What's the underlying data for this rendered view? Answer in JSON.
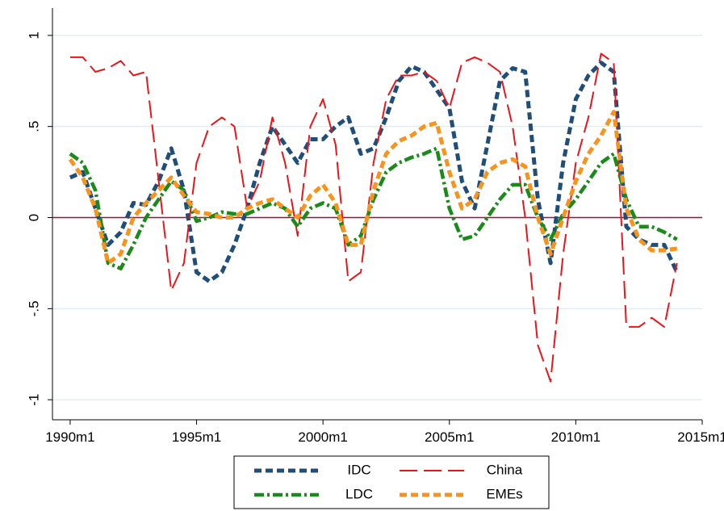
{
  "chart_data": {
    "type": "line",
    "x": [
      1990,
      1990.5,
      1991,
      1991.5,
      1992,
      1992.5,
      1993,
      1993.5,
      1994,
      1994.5,
      1995,
      1995.5,
      1996,
      1996.5,
      1997,
      1997.5,
      1998,
      1998.5,
      1999,
      1999.5,
      2000,
      2000.5,
      2001,
      2001.5,
      2002,
      2002.5,
      2003,
      2003.5,
      2004,
      2004.5,
      2005,
      2005.5,
      2006,
      2006.5,
      2007,
      2007.5,
      2008,
      2008.5,
      2009,
      2009.5,
      2010,
      2010.5,
      2011,
      2011.5,
      2012,
      2012.5,
      2013,
      2013.5,
      2014
    ],
    "series": [
      {
        "name": "IDC",
        "color": "#1f4e79",
        "values": [
          0.22,
          0.25,
          0.05,
          -0.15,
          -0.08,
          0.08,
          0.07,
          0.2,
          0.38,
          0.15,
          -0.3,
          -0.35,
          -0.3,
          -0.15,
          0.05,
          0.3,
          0.5,
          0.4,
          0.3,
          0.43,
          0.43,
          0.5,
          0.55,
          0.35,
          0.38,
          0.55,
          0.75,
          0.83,
          0.8,
          0.7,
          0.6,
          0.2,
          0.05,
          0.4,
          0.75,
          0.82,
          0.8,
          0.1,
          -0.25,
          0.3,
          0.65,
          0.78,
          0.85,
          0.8,
          -0.05,
          -0.12,
          -0.15,
          -0.15,
          -0.3
        ]
      },
      {
        "name": "China",
        "color": "#e8161b",
        "values": [
          0.88,
          0.88,
          0.8,
          0.82,
          0.86,
          0.78,
          0.8,
          0.2,
          -0.4,
          -0.25,
          0.3,
          0.5,
          0.55,
          0.5,
          0.05,
          0.2,
          0.55,
          0.3,
          -0.1,
          0.5,
          0.65,
          0.4,
          -0.35,
          -0.3,
          0.3,
          0.65,
          0.78,
          0.78,
          0.8,
          0.75,
          0.6,
          0.85,
          0.88,
          0.85,
          0.8,
          0.5,
          0.0,
          -0.7,
          -0.9,
          -0.2,
          0.3,
          0.55,
          0.9,
          0.85,
          -0.6,
          -0.6,
          -0.55,
          -0.6,
          -0.25
        ]
      },
      {
        "name": "LDC",
        "color": "#1a8a1a",
        "values": [
          0.35,
          0.3,
          0.15,
          -0.25,
          -0.28,
          -0.15,
          0.0,
          0.1,
          0.2,
          0.15,
          -0.02,
          0.0,
          0.03,
          0.02,
          0.02,
          0.05,
          0.08,
          0.05,
          -0.05,
          0.05,
          0.08,
          0.05,
          -0.15,
          -0.1,
          0.1,
          0.25,
          0.3,
          0.33,
          0.35,
          0.38,
          0.05,
          -0.12,
          -0.1,
          0.0,
          0.1,
          0.18,
          0.18,
          0.0,
          -0.12,
          0.02,
          0.1,
          0.2,
          0.3,
          0.35,
          0.1,
          -0.05,
          -0.05,
          -0.08,
          -0.12
        ]
      },
      {
        "name": "EMEs",
        "color": "#f7941d",
        "values": [
          0.32,
          0.22,
          0.05,
          -0.25,
          -0.2,
          0.0,
          0.08,
          0.15,
          0.22,
          0.12,
          0.03,
          0.02,
          0.0,
          0.0,
          0.05,
          0.08,
          0.1,
          0.05,
          0.0,
          0.12,
          0.18,
          0.08,
          -0.15,
          -0.15,
          0.15,
          0.35,
          0.42,
          0.45,
          0.5,
          0.52,
          0.25,
          0.05,
          0.1,
          0.25,
          0.3,
          0.32,
          0.28,
          0.0,
          -0.2,
          0.0,
          0.2,
          0.35,
          0.45,
          0.58,
          0.05,
          -0.12,
          -0.18,
          -0.18,
          -0.17
        ]
      }
    ],
    "xlim": [
      1989.3,
      2015
    ],
    "xticks": [
      {
        "value": 1990,
        "label": "1990m1"
      },
      {
        "value": 1995,
        "label": "1995m1"
      },
      {
        "value": 2000,
        "label": "2000m1"
      },
      {
        "value": 2005,
        "label": "2005m1"
      },
      {
        "value": 2010,
        "label": "2010m1"
      },
      {
        "value": 2015,
        "label": "2015m1"
      }
    ],
    "ylim": [
      -1.11,
      1.15
    ],
    "yticks": [
      {
        "value": -1,
        "label": "-1"
      },
      {
        "value": -0.5,
        "label": "-.5"
      },
      0,
      {
        "value": 0.5,
        "label": ".5"
      },
      1
    ],
    "reference_line": 0,
    "grid": true,
    "legend": "bottom"
  }
}
